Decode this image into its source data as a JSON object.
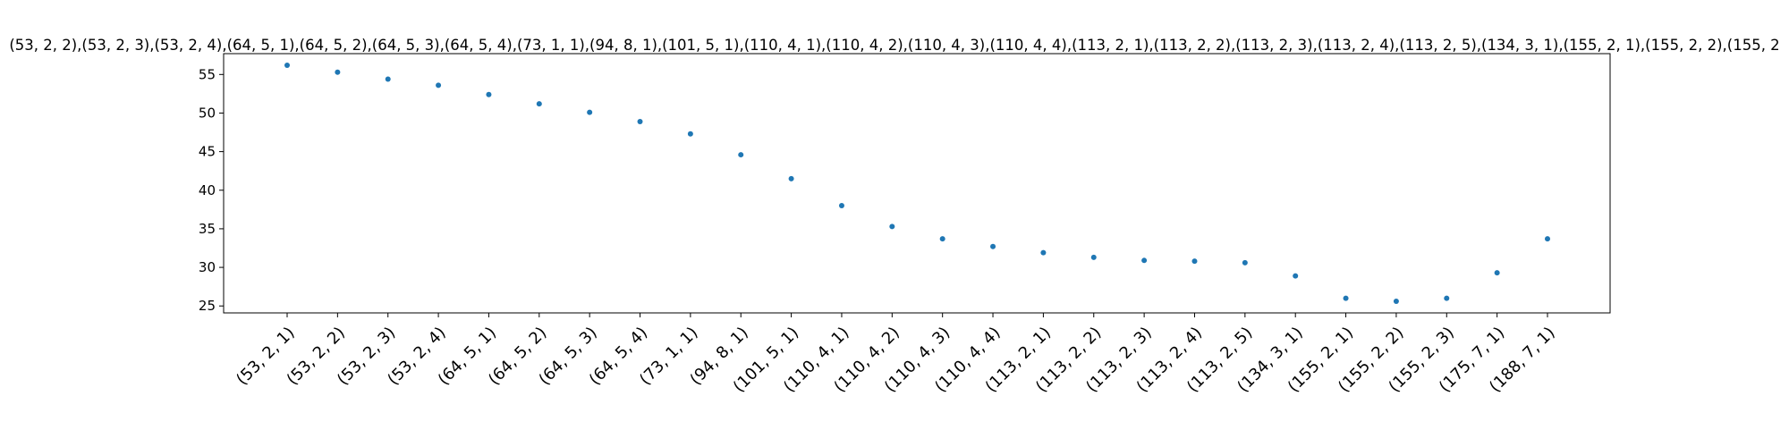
{
  "chart_data": {
    "type": "scatter",
    "title": "(53, 2, 2),(53, 2, 3),(53, 2, 4),(64, 5, 1),(64, 5, 2),(64, 5, 3),(64, 5, 4),(73, 1, 1),(94, 8, 1),(101, 5, 1),(110, 4, 1),(110, 4, 2),(110, 4, 3),(110, 4, 4),(113, 2, 1),(113, 2, 2),(113, 2, 3),(113, 2, 4),(113, 2, 5),(134, 3, 1),(155, 2, 1),(155, 2, 2),(155, 2",
    "xlabel": "",
    "ylabel": "",
    "categories": [
      "(53, 2, 1)",
      "(53, 2, 2)",
      "(53, 2, 3)",
      "(53, 2, 4)",
      "(64, 5, 1)",
      "(64, 5, 2)",
      "(64, 5, 3)",
      "(64, 5, 4)",
      "(73, 1, 1)",
      "(94, 8, 1)",
      "(101, 5, 1)",
      "(110, 4, 1)",
      "(110, 4, 2)",
      "(110, 4, 3)",
      "(110, 4, 4)",
      "(113, 2, 1)",
      "(113, 2, 2)",
      "(113, 2, 3)",
      "(113, 2, 4)",
      "(113, 2, 5)",
      "(134, 3, 1)",
      "(155, 2, 1)",
      "(155, 2, 2)",
      "(155, 2, 3)",
      "(175, 7, 1)",
      "(188, 7, 1)"
    ],
    "values": [
      56.2,
      55.3,
      54.4,
      53.6,
      52.4,
      51.2,
      50.1,
      48.9,
      47.3,
      44.6,
      41.5,
      38.0,
      35.3,
      33.7,
      32.7,
      31.9,
      31.3,
      30.9,
      30.8,
      30.6,
      28.9,
      26.0,
      25.6,
      26.0,
      29.3,
      33.7
    ],
    "ylim": [
      24.1,
      57.7
    ],
    "yticks": [
      "25",
      "30",
      "35",
      "40",
      "45",
      "50",
      "55"
    ],
    "grid": false,
    "legend": "none",
    "colors": {
      "points": "#1f77b4",
      "axes": "#000000"
    }
  }
}
